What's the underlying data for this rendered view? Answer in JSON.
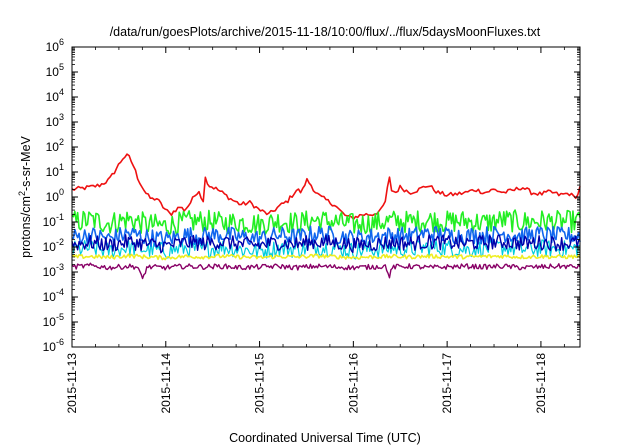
{
  "chart_data": {
    "type": "line",
    "title": "/data/run/goesPlots/archive/2015-11-18/10:00/flux/../flux/5daysMoonFluxes.txt",
    "xlabel": "Coordinated Universal Time (UTC)",
    "ylabel_parts": [
      "protons/cm",
      "2",
      "-s-sr-MeV"
    ],
    "yscale": "log",
    "ylim_exp": [
      -6,
      6
    ],
    "xlim": [
      "2015-11-13",
      "2015-11-18 10:00"
    ],
    "x_ticks": [
      "2015-11-13",
      "2015-11-14",
      "2015-11-15",
      "2015-11-16",
      "2015-11-17",
      "2015-11-18"
    ],
    "y_ticks": [
      {
        "exp": "-6",
        "base": "10"
      },
      {
        "exp": "-5",
        "base": "10"
      },
      {
        "exp": "-4",
        "base": "10"
      },
      {
        "exp": "-3",
        "base": "10"
      },
      {
        "exp": "-2",
        "base": "10"
      },
      {
        "exp": "-1",
        "base": "10"
      },
      {
        "exp": "0",
        "base": "10"
      },
      {
        "exp": "1",
        "base": "10"
      },
      {
        "exp": "2",
        "base": "10"
      },
      {
        "exp": "3",
        "base": "10"
      },
      {
        "exp": "4",
        "base": "10"
      },
      {
        "exp": "5",
        "base": "10"
      },
      {
        "exp": "6",
        "base": "10"
      }
    ],
    "grid": false,
    "legend": "none",
    "series": [
      {
        "color": "#ee1111",
        "stroke": 1.6,
        "x": [
          13.0,
          13.1,
          13.2,
          13.3,
          13.4,
          13.45,
          13.5,
          13.55,
          13.6,
          13.65,
          13.7,
          13.75,
          13.8,
          13.85,
          13.9,
          13.95,
          14.0,
          14.05,
          14.1,
          14.15,
          14.2,
          14.25,
          14.3,
          14.35,
          14.4,
          14.42,
          14.45,
          14.5,
          14.55,
          14.6,
          14.7,
          14.8,
          14.9,
          15.0,
          15.1,
          15.2,
          15.3,
          15.35,
          15.4,
          15.45,
          15.5,
          15.55,
          15.6,
          15.65,
          15.7,
          15.75,
          15.8,
          15.85,
          15.9,
          15.95,
          16.0,
          16.1,
          16.2,
          16.3,
          16.35,
          16.38,
          16.4,
          16.45,
          16.5,
          16.6,
          16.7,
          16.8,
          16.9,
          17.0,
          17.1,
          17.2,
          17.3,
          17.4,
          17.5,
          17.6,
          17.7,
          17.8,
          17.9,
          18.0,
          18.1,
          18.2,
          18.3,
          18.35,
          18.4,
          18.42
        ],
        "y": [
          2.0,
          2.2,
          2.5,
          3.0,
          5.0,
          10.0,
          20.0,
          40.0,
          45.0,
          20.0,
          6.0,
          2.5,
          1.2,
          0.8,
          0.9,
          0.5,
          0.3,
          0.2,
          0.3,
          0.4,
          0.3,
          0.5,
          1.0,
          2.0,
          0.6,
          8.0,
          3.0,
          2.5,
          2.0,
          1.5,
          0.8,
          0.5,
          0.6,
          0.3,
          0.2,
          0.4,
          0.7,
          1.2,
          2.0,
          1.5,
          5.0,
          3.0,
          1.5,
          1.0,
          0.8,
          0.6,
          0.5,
          0.3,
          0.2,
          0.15,
          0.15,
          0.2,
          0.2,
          0.3,
          0.8,
          8.0,
          2.0,
          1.5,
          2.5,
          1.5,
          2.0,
          3.0,
          1.5,
          1.2,
          1.3,
          1.5,
          2.0,
          1.5,
          2.0,
          1.5,
          1.8,
          2.5,
          1.5,
          1.3,
          1.6,
          1.2,
          1.4,
          1.0,
          1.2,
          3.5
        ]
      },
      {
        "color": "#22ee22",
        "stroke": 1.6,
        "x": [
          13.0,
          13.2,
          13.4,
          13.6,
          13.8,
          14.0,
          14.2,
          14.4,
          14.6,
          14.8,
          15.0,
          15.2,
          15.4,
          15.6,
          15.8,
          16.0,
          16.2,
          16.4,
          16.6,
          16.8,
          17.0,
          17.2,
          17.4,
          17.6,
          17.8,
          18.0,
          18.2,
          18.42
        ],
        "y": [
          0.1,
          0.12,
          0.09,
          0.13,
          0.08,
          0.07,
          0.1,
          0.11,
          0.09,
          0.1,
          0.08,
          0.11,
          0.09,
          0.12,
          0.1,
          0.08,
          0.09,
          0.11,
          0.1,
          0.12,
          0.1,
          0.11,
          0.09,
          0.12,
          0.1,
          0.11,
          0.1,
          0.11
        ],
        "jitter": 0.45
      },
      {
        "color": "#00ccdd",
        "stroke": 1.2,
        "x": [
          13.0,
          13.2,
          13.4,
          13.6,
          13.8,
          14.0,
          14.2,
          14.4,
          14.6,
          14.8,
          15.0,
          15.2,
          15.4,
          15.6,
          15.8,
          16.0,
          16.2,
          16.4,
          16.6,
          16.8,
          17.0,
          17.2,
          17.4,
          17.6,
          17.8,
          18.0,
          18.2,
          18.42
        ],
        "y": [
          0.008,
          0.009,
          0.007,
          0.01,
          0.008,
          0.007,
          0.009,
          0.008,
          0.01,
          0.008,
          0.007,
          0.009,
          0.008,
          0.01,
          0.009,
          0.007,
          0.008,
          0.009,
          0.008,
          0.01,
          0.009,
          0.008,
          0.009,
          0.01,
          0.008,
          0.009,
          0.008,
          0.009
        ],
        "jitter": 0.35
      },
      {
        "color": "#1166ee",
        "stroke": 1.6,
        "x": [
          13.0,
          13.2,
          13.4,
          13.6,
          13.8,
          14.0,
          14.2,
          14.4,
          14.6,
          14.8,
          15.0,
          15.2,
          15.4,
          15.6,
          15.8,
          16.0,
          16.2,
          16.4,
          16.6,
          16.8,
          17.0,
          17.2,
          17.4,
          17.6,
          17.8,
          18.0,
          18.2,
          18.42
        ],
        "y": [
          0.025,
          0.03,
          0.022,
          0.035,
          0.025,
          0.02,
          0.03,
          0.028,
          0.032,
          0.025,
          0.022,
          0.03,
          0.025,
          0.035,
          0.03,
          0.022,
          0.026,
          0.03,
          0.028,
          0.035,
          0.03,
          0.028,
          0.03,
          0.035,
          0.028,
          0.032,
          0.028,
          0.03
        ],
        "jitter": 0.35
      },
      {
        "color": "#0000aa",
        "stroke": 1.4,
        "x": [
          13.0,
          13.2,
          13.4,
          13.6,
          13.8,
          14.0,
          14.2,
          14.4,
          14.6,
          14.8,
          15.0,
          15.2,
          15.4,
          15.6,
          15.8,
          16.0,
          16.2,
          16.4,
          16.6,
          16.8,
          17.0,
          17.2,
          17.4,
          17.6,
          17.8,
          18.0,
          18.2,
          18.42
        ],
        "y": [
          0.013,
          0.015,
          0.012,
          0.016,
          0.013,
          0.011,
          0.015,
          0.014,
          0.016,
          0.013,
          0.012,
          0.015,
          0.013,
          0.016,
          0.015,
          0.012,
          0.013,
          0.015,
          0.014,
          0.016,
          0.015,
          0.014,
          0.015,
          0.016,
          0.014,
          0.015,
          0.014,
          0.015
        ],
        "jitter": 0.3
      },
      {
        "color": "#eeee22",
        "stroke": 1.6,
        "x": [
          13.0,
          13.2,
          13.4,
          13.6,
          13.8,
          14.0,
          14.2,
          14.4,
          14.6,
          14.8,
          15.0,
          15.2,
          15.4,
          15.6,
          15.8,
          16.0,
          16.2,
          16.4,
          16.6,
          16.8,
          17.0,
          17.2,
          17.4,
          17.6,
          17.8,
          18.0,
          18.2,
          18.42
        ],
        "y": [
          0.004,
          0.0042,
          0.0038,
          0.0045,
          0.004,
          0.0037,
          0.0042,
          0.004,
          0.0043,
          0.004,
          0.0038,
          0.0042,
          0.004,
          0.0044,
          0.0041,
          0.0038,
          0.004,
          0.0042,
          0.004,
          0.0043,
          0.0041,
          0.004,
          0.0042,
          0.0043,
          0.004,
          0.0042,
          0.004,
          0.0042
        ],
        "jitter": 0.08
      },
      {
        "color": "#880066",
        "stroke": 1.4,
        "x": [
          13.0,
          13.2,
          13.4,
          13.6,
          13.7,
          13.75,
          13.8,
          14.0,
          14.2,
          14.4,
          14.6,
          14.8,
          15.0,
          15.2,
          15.4,
          15.6,
          15.8,
          16.0,
          16.2,
          16.35,
          16.38,
          16.42,
          16.6,
          16.8,
          17.0,
          17.2,
          17.4,
          17.6,
          17.8,
          18.0,
          18.2,
          18.42
        ],
        "y": [
          0.0016,
          0.0018,
          0.0015,
          0.0017,
          0.0016,
          0.0005,
          0.0016,
          0.0015,
          0.0017,
          0.0016,
          0.0017,
          0.0015,
          0.0016,
          0.0017,
          0.0015,
          0.0017,
          0.0016,
          0.0015,
          0.0016,
          0.0017,
          0.0006,
          0.0016,
          0.0017,
          0.0015,
          0.0016,
          0.0017,
          0.0016,
          0.0017,
          0.0015,
          0.0016,
          0.0017,
          0.0016
        ],
        "jitter": 0.1
      }
    ]
  }
}
